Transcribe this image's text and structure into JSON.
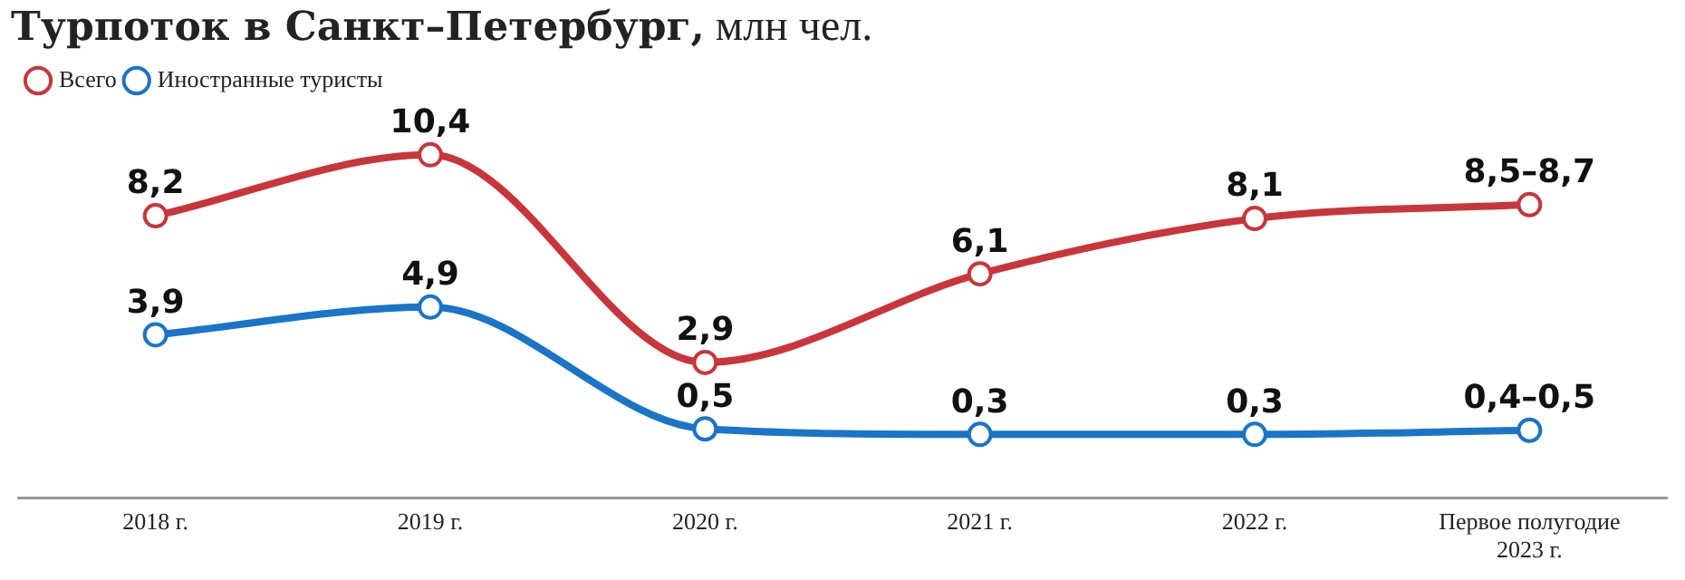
{
  "chart_data": {
    "type": "line",
    "title": "Турпоток в Санкт–Петербург, млн чел.",
    "categories": [
      "2018 г.",
      "2019 г.",
      "2020 г.",
      "2021 г.",
      "2022 г.",
      "Первое полугодие 2023 г."
    ],
    "series": [
      {
        "name": "Всего",
        "color": "#c9353a",
        "values": [
          8.2,
          10.4,
          2.9,
          6.1,
          8.1,
          8.6
        ],
        "value_labels": [
          "8,2",
          "10,4",
          "2,9",
          "6,1",
          "8,1",
          "8,5–8,7"
        ]
      },
      {
        "name": "Иностранные туристы",
        "color": "#1a74c8",
        "values": [
          3.9,
          4.9,
          0.5,
          0.3,
          0.3,
          0.45
        ],
        "value_labels": [
          "3,9",
          "4,9",
          "0,5",
          "0,3",
          "0,3",
          "0,4–0,5"
        ]
      }
    ],
    "legend": "top left",
    "marker": "circle",
    "grid": false
  }
}
